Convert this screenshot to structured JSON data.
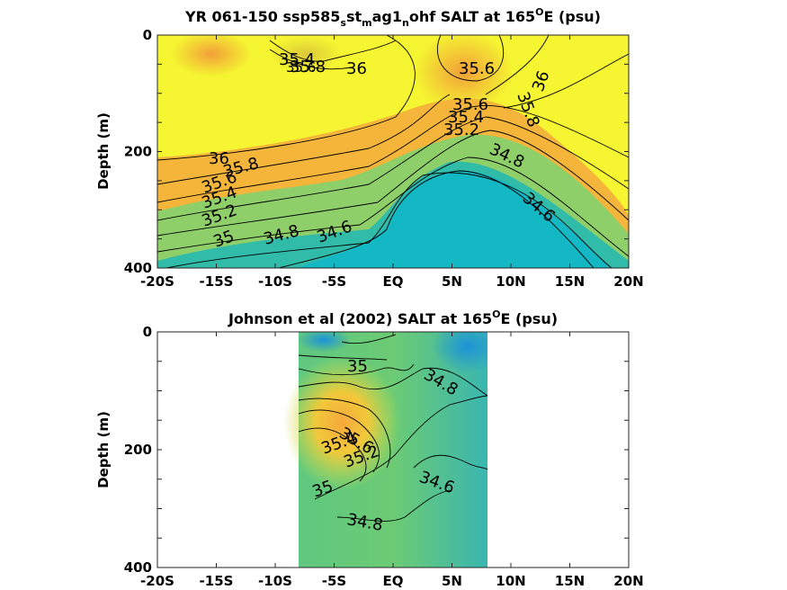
{
  "chart_data": [
    {
      "type": "heatmap",
      "title": "YR 061-150 ssp585_st_mag1_nohf SALT at 165°E (psu)",
      "title_parts": {
        "t1": "YR 061-150 ssp585",
        "s1": "s",
        "t2": "st",
        "s2": "m",
        "t3": "ag1",
        "s3": "n",
        "t4": "ohf SALT at 165",
        "sup": "O",
        "t5": "E (psu)"
      },
      "xlabel": "",
      "ylabel": "Depth (m)",
      "x_ticks": [
        "-20S",
        "-15S",
        "-10S",
        "-5S",
        "EQ",
        "5N",
        "10N",
        "15N",
        "20N"
      ],
      "y_ticks": [
        "0",
        "200",
        "400"
      ],
      "xlim": [
        -20,
        20
      ],
      "ylim": [
        0,
        400
      ],
      "y_reversed": true,
      "colors": {
        "high": "#f5f531",
        "mid": "#f4b53a",
        "low": "#14b8c4"
      },
      "contour_labels": [
        "35.4",
        "35.8",
        "35.6",
        "36",
        "35.6",
        "35.8",
        "36",
        "35.6",
        "35.4",
        "35.2",
        "34.8",
        "34.6",
        "36",
        "35.8",
        "35.6",
        "35.4",
        "35.2",
        "35",
        "34.8",
        "34.6"
      ]
    },
    {
      "type": "heatmap",
      "title": "Johnson et al (2002) SALT at 165°E (psu)",
      "title_parts": {
        "t1": "Johnson et al (2002) SALT at 165",
        "sup": "O",
        "t2": "E (psu)"
      },
      "xlabel": "",
      "ylabel": "Depth (m)",
      "x_ticks": [
        "-20S",
        "-15S",
        "-10S",
        "-5S",
        "EQ",
        "5N",
        "10N",
        "15N",
        "20N"
      ],
      "y_ticks": [
        "0",
        "200",
        "400"
      ],
      "xlim": [
        -20,
        20
      ],
      "ylim": [
        0,
        400
      ],
      "y_reversed": true,
      "data_x_range": [
        -8,
        8
      ],
      "colors": {
        "high": "#f5e43a",
        "mid": "#7ccf6b",
        "low": "#1e93d6"
      },
      "contour_labels": [
        "35",
        "34.8",
        "35.6",
        "35.4",
        "35.2",
        "34.6",
        "35",
        "34.8"
      ]
    }
  ]
}
